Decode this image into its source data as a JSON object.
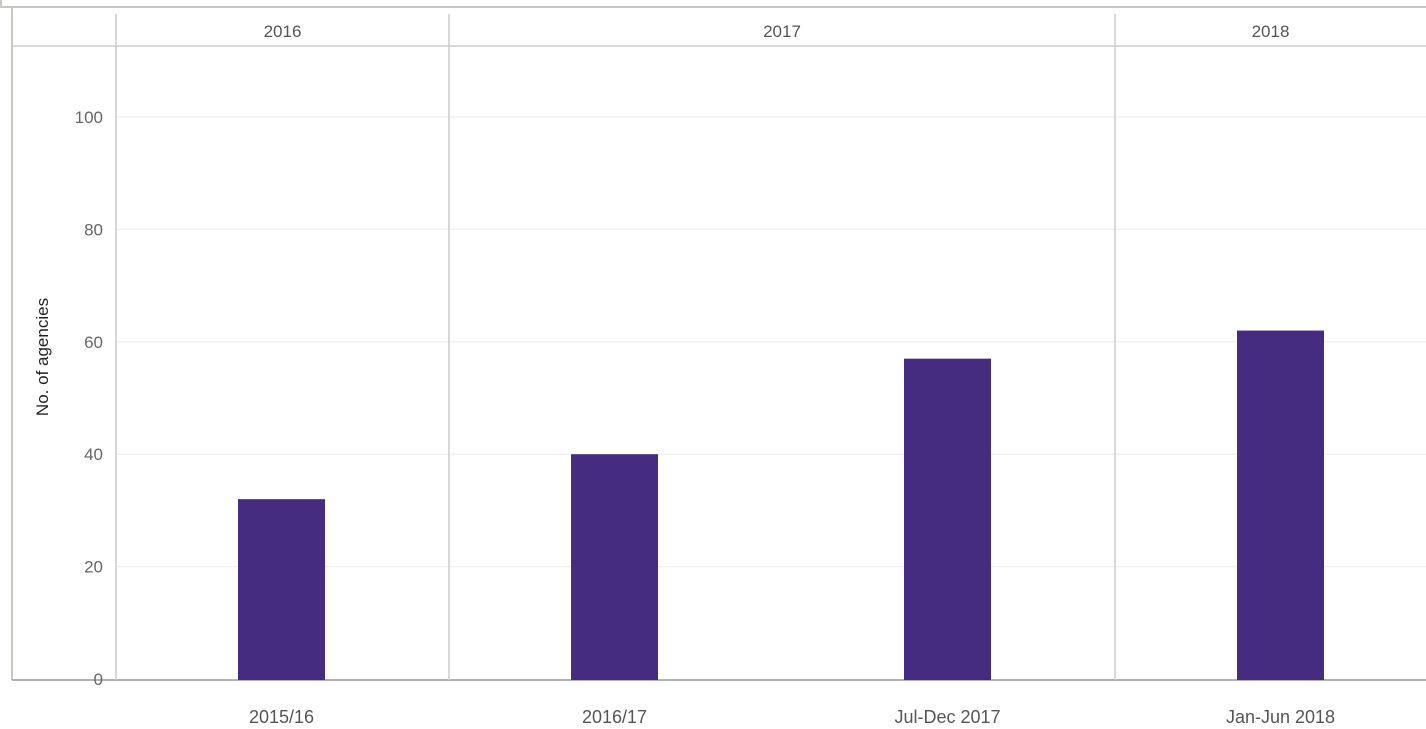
{
  "chart_data": {
    "type": "bar",
    "ylabel": "No. of agencies",
    "xlabel": "",
    "ylim": [
      0,
      112
    ],
    "yticks": [
      0,
      20,
      40,
      60,
      80,
      100
    ],
    "grid": true,
    "column_headers": [
      {
        "label": "2016",
        "categories": [
          "2015/16"
        ]
      },
      {
        "label": "2017",
        "categories": [
          "2016/17",
          "Jul-Dec 2017"
        ]
      },
      {
        "label": "2018",
        "categories": [
          "Jan-Jun 2018"
        ]
      }
    ],
    "categories": [
      "2015/16",
      "2016/17",
      "Jul-Dec 2017",
      "Jan-Jun 2018"
    ],
    "values": [
      32,
      40,
      57,
      62
    ],
    "colors": {
      "bar": "#452c80",
      "grid": "#f0f0f0",
      "divider": "#cccccc"
    }
  }
}
